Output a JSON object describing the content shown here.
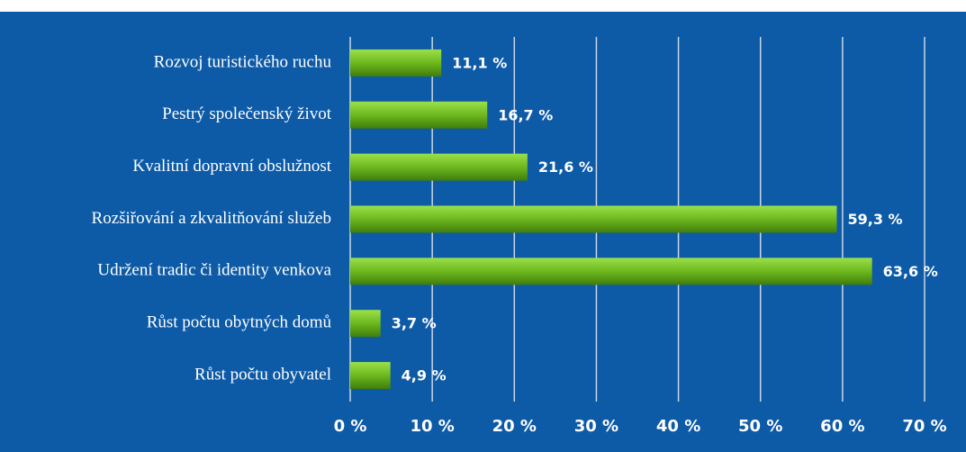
{
  "chart_data": {
    "type": "barh",
    "categories": [
      "Rozvoj turistického ruchu",
      "Pestrý společenský život",
      "Kvalitní dopravní obslužnost",
      "Rozšiřování a zkvalitňování služeb",
      "Udržení tradic či identity venkova",
      "Růst počtu obytných domů",
      "Růst počtu obyvatel"
    ],
    "values": [
      11.1,
      16.7,
      21.6,
      59.3,
      63.6,
      3.7,
      4.9
    ],
    "value_labels": [
      "11,1 %",
      "16,7 %",
      "21,6 %",
      "59,3 %",
      "63,6 %",
      "3,7 %",
      "4,9 %"
    ],
    "color": "#6db81e",
    "xlim": [
      0,
      70
    ],
    "xticks": [
      {
        "value": 0,
        "label": "0 %"
      },
      {
        "value": 10,
        "label": "10 %"
      },
      {
        "value": 20,
        "label": "20 %"
      },
      {
        "value": 30,
        "label": "30 %"
      },
      {
        "value": 40,
        "label": "40 %"
      },
      {
        "value": 50,
        "label": "50 %"
      },
      {
        "value": 60,
        "label": "60 %"
      },
      {
        "value": 70,
        "label": "70 %"
      }
    ],
    "grid": true
  }
}
